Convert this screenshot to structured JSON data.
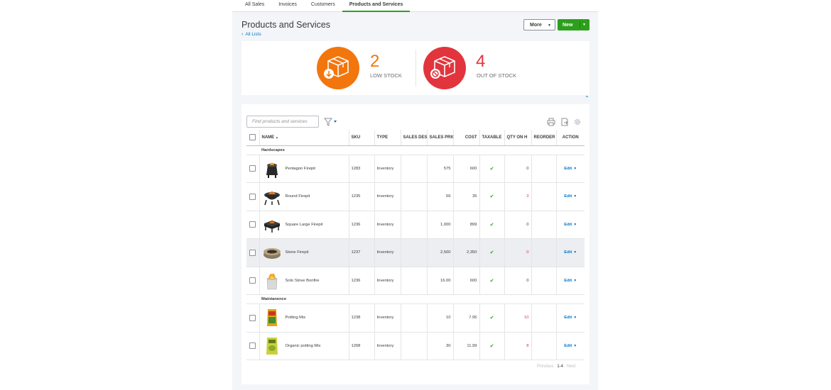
{
  "tabs": [
    {
      "label": "All Sales",
      "active": false
    },
    {
      "label": "Invoices",
      "active": false
    },
    {
      "label": "Customers",
      "active": false
    },
    {
      "label": "Products and Services",
      "active": true
    }
  ],
  "page": {
    "title": "Products and Services",
    "back_link": "All Lists",
    "more_label": "More",
    "new_label": "New"
  },
  "stock": {
    "low_count": "2",
    "low_label": "LOW STOCK",
    "out_count": "4",
    "out_label": "OUT OF STOCK"
  },
  "search": {
    "placeholder": "Find products and services"
  },
  "table": {
    "headers": {
      "name": "NAME",
      "sort_indicator": "▲",
      "sku": "SKU",
      "type": "TYPE",
      "sales_desc": "SALES DES",
      "sales_price": "SALES PRIC",
      "cost": "COST",
      "taxable": "TAXABLE",
      "qty": "QTY ON H",
      "reorder": "REORDER",
      "action": "ACTION"
    },
    "edit_label": "Edit",
    "groups": [
      {
        "name": "Hardscapes",
        "rows": [
          {
            "name": "Pentagon Firepit",
            "sku": "1283",
            "type": "Inventory",
            "price": "575",
            "cost": "600",
            "qty": "0",
            "qty_warn": false
          },
          {
            "name": "Round Firepit",
            "sku": "1235",
            "type": "Inventory",
            "price": "56",
            "cost": "35",
            "qty": "3",
            "qty_warn": true
          },
          {
            "name": "Square Large Firepit",
            "sku": "1236",
            "type": "Inventory",
            "price": "1,000",
            "cost": "899",
            "qty": "0",
            "qty_warn": false
          },
          {
            "name": "Stone Firepit",
            "sku": "1237",
            "type": "Inventory",
            "price": "2,500",
            "cost": "2,350",
            "qty": "0",
            "qty_warn": true
          },
          {
            "name": "Solo Stove Bonfire",
            "sku": "1236",
            "type": "Inventory",
            "price": "16.00",
            "cost": "600",
            "qty": "0",
            "qty_warn": false
          }
        ]
      },
      {
        "name": "Maintanence",
        "rows": [
          {
            "name": "Potting Mix",
            "sku": "1238",
            "type": "Inventory",
            "price": "10",
            "cost": "7.95",
            "qty": "10",
            "qty_warn": true
          },
          {
            "name": "Organic potting Mix",
            "sku": "1268",
            "type": "Inventory",
            "price": "30",
            "cost": "11.99",
            "qty": "8",
            "qty_warn": true
          }
        ]
      }
    ]
  },
  "pager": {
    "previous": "Previous",
    "current": "1-4",
    "next": "Next"
  },
  "colors": {
    "accent": "#2ca01c",
    "link": "#0077c5",
    "low_stock": "#f2760c",
    "out_stock": "#e2343d"
  }
}
